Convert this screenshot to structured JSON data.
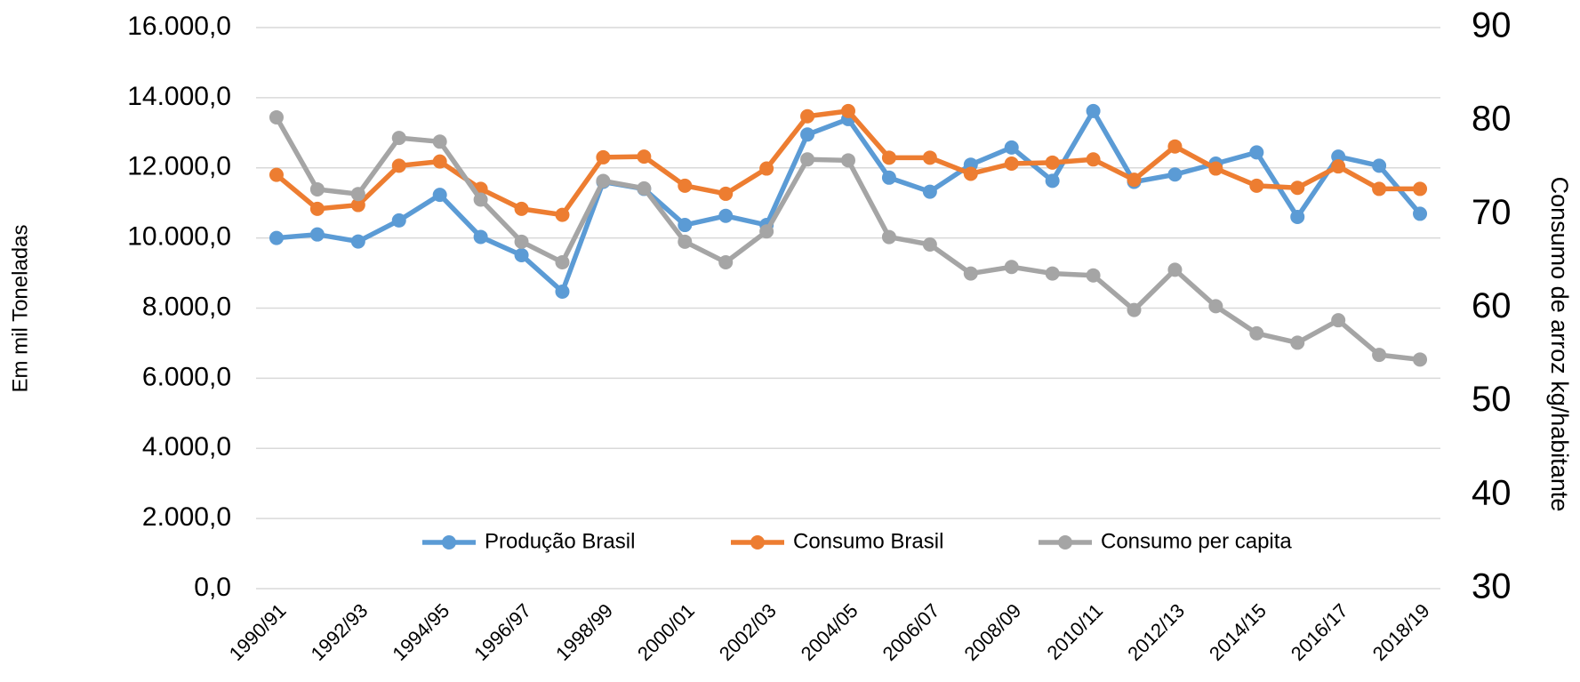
{
  "chart_data": {
    "type": "line",
    "y_label": "Em mil Toneladas",
    "y2_label": "Consumo de arroz kg/habitante",
    "categories": [
      "1990/91",
      null,
      "1992/93",
      null,
      "1994/95",
      null,
      "1996/97",
      null,
      "1998/99",
      null,
      "2000/01",
      null,
      "2002/03",
      null,
      "2004/05",
      null,
      "2006/07",
      null,
      "2008/09",
      null,
      "2010/11",
      null,
      "2012/13",
      null,
      "2014/15",
      null,
      "2016/17",
      null,
      "2018/19"
    ],
    "series": [
      {
        "name": "Produção Brasil",
        "color": "#5b9bd5",
        "axis": "y",
        "values": [
          10000,
          10100,
          9900,
          10500,
          11230,
          10030,
          9510,
          8470,
          11600,
          11400,
          10370,
          10630,
          10370,
          12950,
          13390,
          11720,
          11320,
          12090,
          12580,
          11630,
          13620,
          11600,
          11810,
          12120,
          12440,
          10600,
          12320,
          12060,
          10690
        ]
      },
      {
        "name": "Consumo Brasil",
        "color": "#ed7d31",
        "axis": "y",
        "values": [
          11800,
          10830,
          10940,
          12060,
          12180,
          11400,
          10830,
          10660,
          12300,
          12320,
          11490,
          11260,
          11980,
          13470,
          13620,
          12290,
          12290,
          11830,
          12120,
          12150,
          12240,
          11660,
          12610,
          11980,
          11490,
          11430,
          12040,
          11400,
          11400
        ]
      },
      {
        "name": "Consumo per capita",
        "color": "#a5a5a5",
        "axis": "y2",
        "values": [
          80.4,
          72.7,
          72.2,
          78.2,
          77.8,
          71.6,
          67.1,
          64.9,
          73.6,
          72.8,
          67.1,
          64.9,
          68.2,
          75.9,
          75.8,
          67.6,
          66.8,
          63.7,
          64.4,
          63.7,
          63.5,
          59.8,
          64.1,
          60.2,
          57.3,
          56.3,
          58.7,
          55.0,
          54.5
        ]
      }
    ],
    "ylim": [
      0,
      16000
    ],
    "yticks": [
      {
        "value": 0,
        "label": "0,0"
      },
      {
        "value": 2000,
        "label": "2.000,0"
      },
      {
        "value": 4000,
        "label": "4.000,0"
      },
      {
        "value": 6000,
        "label": "6.000,0"
      },
      {
        "value": 8000,
        "label": "8.000,0"
      },
      {
        "value": 10000,
        "label": "10.000,0"
      },
      {
        "value": 12000,
        "label": "12.000,0"
      },
      {
        "value": 14000,
        "label": "14.000,0"
      },
      {
        "value": 16000,
        "label": "16.000,0"
      }
    ],
    "y2lim": [
      30,
      90
    ],
    "y2ticks": [
      30,
      40,
      50,
      60,
      70,
      80,
      90
    ],
    "grid": true,
    "legend": "bottom"
  }
}
